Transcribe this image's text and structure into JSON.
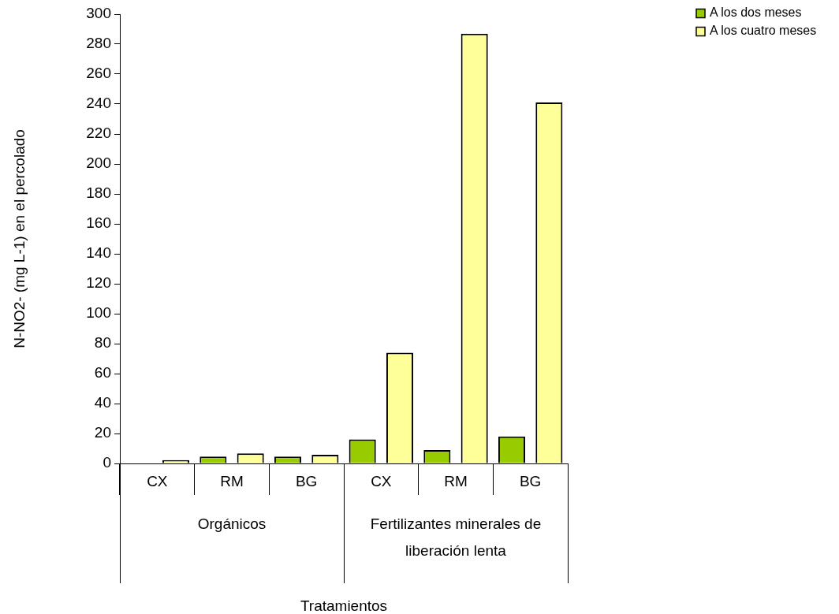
{
  "chart_data": {
    "type": "bar",
    "ylabel": "N-NO2- (mg L-1) en el percolado",
    "categories": [
      "CX",
      "RM",
      "BG",
      "CX",
      "RM",
      "BG"
    ],
    "series": [
      {
        "name": "A los dos meses",
        "color": "#99cc00",
        "values": [
          0,
          4.6,
          4.6,
          16,
          9,
          18
        ]
      },
      {
        "name": "A los cuatro meses",
        "color": "#ffff99",
        "values": [
          2.3,
          6.7,
          5.8,
          74,
          287,
          241
        ]
      }
    ],
    "annotations": [
      "Orgánicos",
      "Fertilizantes minerales de\nliberación lenta",
      "Tratamientos"
    ],
    "ylim": [
      0,
      300
    ],
    "yticks": [
      0,
      20,
      40,
      60,
      80,
      100,
      120,
      140,
      160,
      180,
      200,
      220,
      240,
      260,
      280,
      300
    ],
    "grid": false,
    "legend": "top right"
  }
}
